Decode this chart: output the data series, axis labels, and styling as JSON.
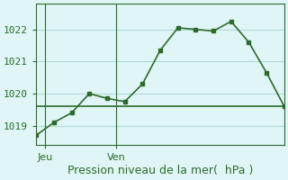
{
  "line1_x": [
    0,
    1,
    2,
    3,
    4,
    5,
    6,
    7,
    8,
    9,
    10,
    11,
    12,
    13,
    14
  ],
  "line1_y": [
    1018.7,
    1019.1,
    1019.4,
    1020.0,
    1019.85,
    1019.75,
    1020.3,
    1021.35,
    1022.05,
    1022.0,
    1021.95,
    1022.25,
    1021.6,
    1020.65,
    1019.6
  ],
  "line2_x": [
    0,
    1,
    2,
    3,
    4,
    5,
    6,
    7,
    8,
    9,
    10,
    11,
    12,
    13,
    14
  ],
  "line2_y": [
    1019.6,
    1019.6,
    1019.6,
    1019.6,
    1019.6,
    1019.6,
    1019.6,
    1019.6,
    1019.6,
    1019.6,
    1019.6,
    1019.6,
    1019.6,
    1019.6,
    1019.6
  ],
  "line_color": "#2d6b2d",
  "bg_color": "#e0f5f5",
  "grid_color": "#b0d8d8",
  "xlabel": "Pression niveau de la mer(  hPa )",
  "yticks": [
    1019,
    1020,
    1021,
    1022
  ],
  "ylim": [
    1018.4,
    1022.8
  ],
  "xlim": [
    0,
    14
  ],
  "vline_jeu": 0.5,
  "vline_ven": 4.5,
  "xlabel_fontsize": 9,
  "tick_fontsize": 8
}
